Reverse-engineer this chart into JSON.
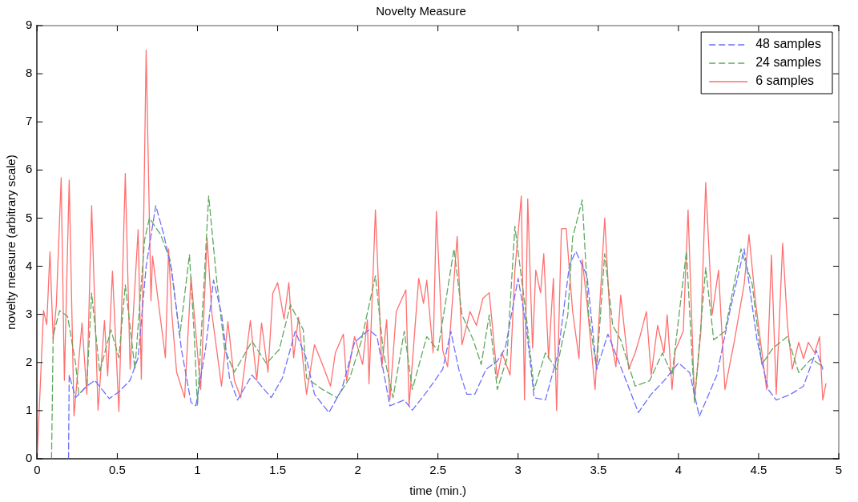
{
  "chart_data": {
    "type": "line",
    "title": "Novelty Measure",
    "xlabel": "time (min.)",
    "ylabel": "novelty measure (arbitrary scale)",
    "xlim": [
      0,
      5
    ],
    "xticks": [
      0,
      0.5,
      1,
      1.5,
      2,
      2.5,
      3,
      3.5,
      4,
      4.5,
      5
    ],
    "ylim": [
      0,
      9
    ],
    "yticks": [
      0,
      1,
      2,
      3,
      4,
      5,
      6,
      7,
      8,
      9
    ],
    "grid": false,
    "legend": "top right",
    "marker": "none",
    "series": [
      {
        "name": "48 samples",
        "color": "#6f6fff",
        "line_style": "dashed",
        "x": [
          0.196,
          0.2,
          0.24,
          0.31,
          0.36,
          0.45,
          0.51,
          0.58,
          0.63,
          0.68,
          0.74,
          0.79,
          0.84,
          0.9,
          0.96,
          0.99,
          1.05,
          1.1,
          1.15,
          1.2,
          1.25,
          1.34,
          1.46,
          1.53,
          1.61,
          1.68,
          1.73,
          1.82,
          1.9,
          1.98,
          2.07,
          2.12,
          2.2,
          2.29,
          2.34,
          2.43,
          2.53,
          2.58,
          2.63,
          2.68,
          2.73,
          2.8,
          2.87,
          2.92,
          3.0,
          3.05,
          3.1,
          3.17,
          3.25,
          3.32,
          3.36,
          3.43,
          3.49,
          3.56,
          3.66,
          3.75,
          3.83,
          3.91,
          4.0,
          4.07,
          4.13,
          4.24,
          4.32,
          4.41,
          4.49,
          4.56,
          4.61,
          4.7,
          4.78,
          4.86,
          4.9
        ],
        "values": [
          0,
          1.74,
          1.27,
          1.51,
          1.63,
          1.25,
          1.39,
          1.63,
          2.1,
          4.0,
          5.26,
          4.66,
          3.9,
          2.27,
          1.17,
          1.1,
          2.27,
          3.71,
          3.02,
          1.68,
          1.22,
          1.74,
          1.27,
          1.68,
          2.65,
          2.08,
          1.34,
          0.96,
          1.44,
          2.42,
          2.68,
          2.54,
          1.1,
          1.22,
          1.01,
          1.39,
          1.86,
          2.65,
          1.86,
          1.34,
          1.34,
          1.86,
          2.03,
          2.3,
          3.75,
          2.77,
          1.27,
          1.22,
          2.2,
          4.02,
          4.31,
          3.8,
          1.86,
          2.59,
          1.74,
          0.96,
          1.34,
          1.62,
          1.99,
          1.79,
          0.88,
          1.74,
          3.06,
          4.36,
          2.47,
          1.44,
          1.22,
          1.34,
          1.51,
          2.25,
          1.86
        ]
      },
      {
        "name": "24 samples",
        "color": "#5fa85f",
        "line_style": "dashed",
        "x": [
          0.09,
          0.1,
          0.14,
          0.19,
          0.24,
          0.26,
          0.31,
          0.34,
          0.39,
          0.46,
          0.51,
          0.55,
          0.61,
          0.67,
          0.7,
          0.77,
          0.83,
          0.89,
          0.95,
          0.98,
          1.0,
          1.07,
          1.12,
          1.17,
          1.23,
          1.34,
          1.43,
          1.51,
          1.58,
          1.66,
          1.68,
          1.78,
          1.87,
          1.95,
          2.02,
          2.11,
          2.16,
          2.22,
          2.29,
          2.34,
          2.43,
          2.5,
          2.6,
          2.65,
          2.72,
          2.77,
          2.82,
          2.87,
          2.93,
          2.98,
          3.05,
          3.1,
          3.17,
          3.24,
          3.31,
          3.34,
          3.4,
          3.44,
          3.49,
          3.54,
          3.59,
          3.64,
          3.73,
          3.82,
          3.9,
          3.96,
          4.05,
          4.1,
          4.17,
          4.22,
          4.29,
          4.39,
          4.46,
          4.52,
          4.59,
          4.68,
          4.75,
          4.83,
          4.9
        ],
        "values": [
          0,
          2.56,
          3.08,
          2.96,
          1.98,
          1.34,
          1.51,
          3.44,
          1.8,
          2.68,
          2.1,
          3.61,
          1.86,
          4.54,
          5.0,
          4.66,
          4.12,
          2.56,
          4.24,
          2.56,
          1.1,
          5.46,
          3.71,
          2.27,
          1.8,
          2.44,
          1.98,
          2.27,
          3.2,
          2.68,
          1.68,
          1.44,
          1.27,
          1.68,
          2.42,
          3.8,
          2.2,
          1.27,
          2.65,
          1.44,
          2.54,
          2.25,
          4.36,
          2.99,
          2.47,
          1.96,
          2.99,
          1.44,
          2.08,
          4.83,
          2.99,
          1.44,
          2.2,
          1.86,
          2.99,
          4.6,
          5.38,
          2.99,
          1.86,
          4.26,
          2.77,
          2.47,
          1.51,
          1.62,
          2.2,
          1.74,
          4.31,
          1.17,
          3.97,
          2.47,
          2.65,
          4.36,
          3.63,
          1.96,
          2.3,
          2.54,
          1.79,
          2.08,
          1.91
        ]
      },
      {
        "name": "6 samples",
        "color": "#ff6f6f",
        "line_style": "solid",
        "x": [
          0,
          0.04,
          0.06,
          0.08,
          0.1,
          0.12,
          0.15,
          0.17,
          0.2,
          0.23,
          0.28,
          0.31,
          0.34,
          0.38,
          0.42,
          0.44,
          0.47,
          0.51,
          0.55,
          0.58,
          0.63,
          0.65,
          0.68,
          0.71,
          0.72,
          0.8,
          0.82,
          0.84,
          0.87,
          0.92,
          0.96,
          1.02,
          1.06,
          1.09,
          1.15,
          1.19,
          1.23,
          1.27,
          1.33,
          1.37,
          1.4,
          1.44,
          1.47,
          1.5,
          1.54,
          1.57,
          1.6,
          1.63,
          1.68,
          1.73,
          1.78,
          1.83,
          1.86,
          1.91,
          1.93,
          1.98,
          2.03,
          2.06,
          2.07,
          2.11,
          2.15,
          2.18,
          2.2,
          2.24,
          2.3,
          2.32,
          2.38,
          2.41,
          2.43,
          2.47,
          2.49,
          2.53,
          2.56,
          2.62,
          2.65,
          2.7,
          2.74,
          2.78,
          2.82,
          2.87,
          2.9,
          2.95,
          2.98,
          3.02,
          3.04,
          3.06,
          3.09,
          3.11,
          3.14,
          3.16,
          3.19,
          3.22,
          3.24,
          3.27,
          3.3,
          3.34,
          3.38,
          3.4,
          3.43,
          3.48,
          3.54,
          3.58,
          3.61,
          3.64,
          3.69,
          3.73,
          3.76,
          3.8,
          3.83,
          3.87,
          3.91,
          3.93,
          3.96,
          3.98,
          4.03,
          4.06,
          4.1,
          4.14,
          4.17,
          4.21,
          4.25,
          4.29,
          4.35,
          4.41,
          4.44,
          4.48,
          4.53,
          4.55,
          4.58,
          4.61,
          4.65,
          4.68,
          4.71,
          4.75,
          4.78,
          4.81,
          4.85,
          4.88,
          4.9,
          4.92
        ],
        "values": [
          0,
          3.08,
          2.79,
          4.3,
          2.49,
          3.2,
          5.84,
          1.63,
          5.79,
          0.89,
          2.82,
          1.34,
          5.26,
          1.01,
          2.87,
          1.72,
          3.9,
          0.98,
          5.93,
          1.86,
          4.76,
          1.65,
          8.49,
          3.28,
          4.21,
          2.1,
          4.36,
          3.02,
          1.8,
          1.27,
          3.78,
          1.44,
          4.59,
          3.02,
          1.51,
          2.85,
          1.63,
          1.27,
          2.87,
          1.63,
          2.82,
          1.8,
          3.44,
          3.66,
          2.9,
          3.66,
          2.1,
          2.94,
          1.34,
          2.37,
          1.96,
          1.51,
          2.2,
          2.59,
          1.62,
          2.54,
          1.96,
          2.89,
          1.56,
          5.17,
          1.91,
          2.89,
          1.22,
          3.06,
          3.51,
          1.1,
          3.75,
          3.23,
          3.71,
          2.2,
          5.14,
          2.25,
          1.91,
          4.62,
          2.37,
          3.06,
          2.77,
          3.33,
          3.45,
          1.68,
          2.2,
          1.74,
          3.92,
          5.46,
          1.22,
          5.4,
          2.3,
          3.92,
          3.45,
          4.26,
          2.08,
          3.75,
          1.0,
          4.78,
          4.78,
          3.06,
          2.08,
          4.14,
          3.23,
          1.44,
          5.0,
          2.47,
          1.91,
          3.4,
          1.86,
          2.2,
          2.54,
          3.06,
          1.74,
          2.77,
          2.2,
          2.99,
          1.44,
          2.25,
          2.65,
          5.17,
          1.22,
          2.65,
          5.74,
          2.99,
          3.92,
          1.44,
          2.47,
          3.63,
          4.66,
          3.28,
          1.96,
          1.44,
          4.23,
          1.34,
          4.48,
          2.77,
          1.86,
          2.42,
          2.08,
          2.42,
          2.2,
          2.54,
          1.22,
          1.56
        ]
      }
    ]
  }
}
